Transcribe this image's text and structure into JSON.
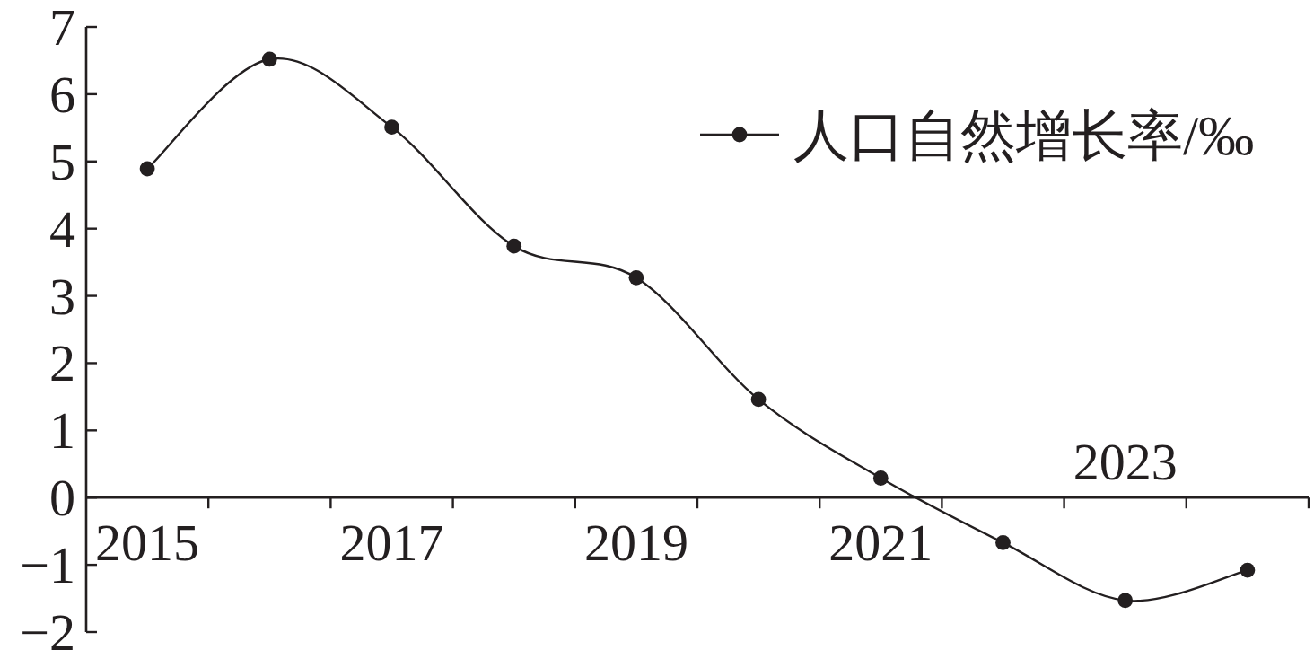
{
  "chart_data": {
    "type": "line",
    "categories": [
      "2015",
      null,
      "2017",
      null,
      "2019",
      null,
      "2021",
      null,
      "2023",
      null
    ],
    "series": [
      {
        "name": "人口自然增长率/‰",
        "color": "#231f20",
        "values": [
          4.89,
          6.52,
          5.51,
          3.74,
          3.27,
          1.46,
          0.29,
          -0.67,
          -1.53,
          -1.08
        ]
      }
    ],
    "ylim": [
      -2,
      7
    ],
    "yticks": [
      -2,
      -1,
      0,
      1,
      2,
      3,
      4,
      5,
      6,
      7
    ],
    "legend": "top right",
    "marker": "circle",
    "line_style": "solid"
  }
}
